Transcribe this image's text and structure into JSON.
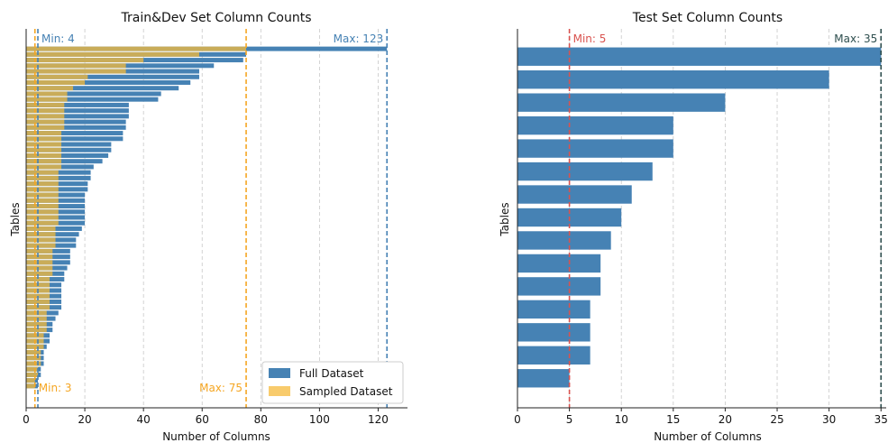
{
  "chart_data": [
    {
      "type": "bar",
      "orientation": "horizontal",
      "title": "Train&Dev Set Column Counts",
      "xlabel": "Number of Columns",
      "ylabel": "Tables",
      "xlim": [
        0,
        130
      ],
      "xticks": [
        0,
        20,
        40,
        60,
        80,
        100,
        120
      ],
      "grid": "x-dashed",
      "legend_position": "lower-right",
      "series": [
        {
          "name": "Full Dataset",
          "color": "#4682b4",
          "values": [
            123,
            75,
            74,
            64,
            59,
            59,
            56,
            52,
            46,
            45,
            35,
            35,
            35,
            34,
            34,
            33,
            33,
            29,
            29,
            28,
            26,
            23,
            22,
            22,
            21,
            21,
            20,
            20,
            20,
            20,
            20,
            20,
            19,
            18,
            17,
            17,
            15,
            15,
            15,
            14,
            13,
            13,
            12,
            12,
            12,
            12,
            12,
            11,
            10,
            9,
            9,
            8,
            8,
            7,
            6,
            6,
            6,
            5,
            5,
            4,
            4
          ]
        },
        {
          "name": "Sampled Dataset",
          "color": "#f5b93b",
          "opacity": 0.75,
          "values": [
            75,
            59,
            40,
            34,
            34,
            21,
            20,
            16,
            14,
            14,
            13,
            13,
            13,
            13,
            13,
            12,
            12,
            12,
            12,
            12,
            12,
            12,
            11,
            11,
            11,
            11,
            11,
            11,
            11,
            11,
            11,
            11,
            10,
            10,
            10,
            10,
            9,
            9,
            9,
            9,
            9,
            8,
            8,
            8,
            8,
            8,
            8,
            7,
            7,
            7,
            7,
            6,
            6,
            6,
            5,
            5,
            5,
            4,
            4,
            3,
            3
          ]
        }
      ],
      "reference_lines": [
        {
          "value": 4,
          "label": "Min: 4",
          "color": "#4682b4",
          "label_pos": "top"
        },
        {
          "value": 123,
          "label": "Max: 123",
          "color": "#4682b4",
          "label_pos": "top"
        },
        {
          "value": 3,
          "label": "Min: 3",
          "color": "#f5a623",
          "label_pos": "bottom"
        },
        {
          "value": 75,
          "label": "Max: 75",
          "color": "#f5a623",
          "label_pos": "bottom"
        }
      ]
    },
    {
      "type": "bar",
      "orientation": "horizontal",
      "title": "Test Set Column Counts",
      "xlabel": "Number of Columns",
      "ylabel": "Tables",
      "xlim": [
        0,
        35.5
      ],
      "xticks": [
        0,
        5,
        10,
        15,
        20,
        25,
        30,
        35
      ],
      "grid": "x-dashed",
      "series": [
        {
          "color": "#4682b4",
          "values": [
            35,
            30,
            20,
            15,
            15,
            13,
            11,
            10,
            9,
            8,
            8,
            7,
            7,
            7,
            5
          ]
        }
      ],
      "reference_lines": [
        {
          "value": 5,
          "label": "Min: 5",
          "color": "#d9534f",
          "label_pos": "top"
        },
        {
          "value": 35,
          "label": "Max: 35",
          "color": "#2f4f4f",
          "label_pos": "top"
        }
      ]
    }
  ]
}
